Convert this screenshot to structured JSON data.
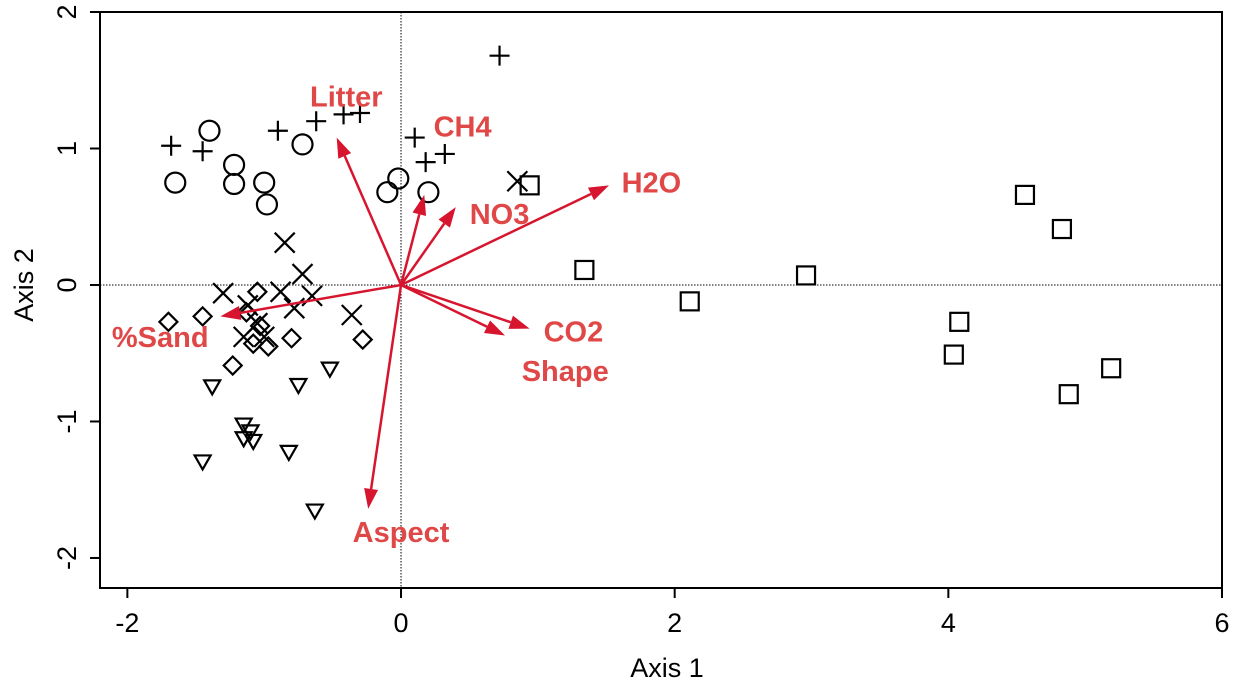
{
  "chart_data": {
    "type": "scatter",
    "title": "",
    "xlabel": "Axis 1",
    "ylabel": "Axis 2",
    "xlim": [
      -2.2,
      6
    ],
    "ylim": [
      -2.22,
      2
    ],
    "xticks": [
      -2,
      0,
      2,
      4,
      6
    ],
    "xtick_labels": [
      "-2",
      "0",
      "2",
      "4",
      "6"
    ],
    "yticks": [
      -2,
      -1,
      0,
      1,
      2
    ],
    "ytick_labels": [
      "-2",
      "-1",
      "0",
      "1",
      "2"
    ],
    "grid": false,
    "reference_lines": [
      {
        "axis": "x",
        "value": 0,
        "style": "dotted"
      },
      {
        "axis": "y",
        "value": 0,
        "style": "dotted"
      }
    ],
    "vector_color": "#d7152f",
    "label_color": "#e04848",
    "marker_color": "#000000",
    "series": [
      {
        "marker": "plus",
        "points": [
          [
            0.72,
            1.68
          ],
          [
            -1.68,
            1.02
          ],
          [
            -1.45,
            0.98
          ],
          [
            -0.9,
            1.13
          ],
          [
            -0.62,
            1.2
          ],
          [
            -0.42,
            1.25
          ],
          [
            -0.3,
            1.26
          ],
          [
            0.1,
            1.08
          ],
          [
            0.18,
            0.9
          ],
          [
            0.32,
            0.96
          ]
        ]
      },
      {
        "marker": "circle",
        "points": [
          [
            -1.4,
            1.13
          ],
          [
            -0.72,
            1.03
          ],
          [
            -1.22,
            0.88
          ],
          [
            -1.65,
            0.75
          ],
          [
            -1.22,
            0.74
          ],
          [
            -1.0,
            0.75
          ],
          [
            -0.98,
            0.59
          ],
          [
            -0.1,
            0.68
          ],
          [
            -0.02,
            0.78
          ],
          [
            0.2,
            0.68
          ]
        ]
      },
      {
        "marker": "x",
        "points": [
          [
            0.85,
            0.76
          ],
          [
            -0.85,
            0.31
          ],
          [
            -0.72,
            0.08
          ],
          [
            -1.3,
            -0.06
          ],
          [
            -0.88,
            -0.05
          ],
          [
            -0.65,
            -0.08
          ],
          [
            -1.12,
            -0.15
          ],
          [
            -0.78,
            -0.17
          ],
          [
            -0.36,
            -0.22
          ],
          [
            -1.05,
            -0.28
          ],
          [
            -1.15,
            -0.38
          ],
          [
            -1.0,
            -0.38
          ]
        ]
      },
      {
        "marker": "square",
        "points": [
          [
            0.94,
            0.73
          ],
          [
            4.56,
            0.66
          ],
          [
            4.83,
            0.41
          ],
          [
            1.34,
            0.11
          ],
          [
            2.96,
            0.07
          ],
          [
            2.11,
            -0.12
          ],
          [
            4.08,
            -0.27
          ],
          [
            4.04,
            -0.51
          ],
          [
            5.19,
            -0.61
          ],
          [
            4.88,
            -0.8
          ]
        ]
      },
      {
        "marker": "diamond",
        "points": [
          [
            -1.05,
            -0.05
          ],
          [
            -1.13,
            -0.2
          ],
          [
            -1.45,
            -0.23
          ],
          [
            -1.7,
            -0.27
          ],
          [
            -1.03,
            -0.3
          ],
          [
            -0.8,
            -0.39
          ],
          [
            -0.28,
            -0.4
          ],
          [
            -1.08,
            -0.43
          ],
          [
            -0.97,
            -0.45
          ],
          [
            -1.23,
            -0.59
          ]
        ]
      },
      {
        "marker": "triangle-down",
        "points": [
          [
            -0.52,
            -0.62
          ],
          [
            -0.75,
            -0.74
          ],
          [
            -1.38,
            -0.75
          ],
          [
            -1.15,
            -1.03
          ],
          [
            -1.1,
            -1.08
          ],
          [
            -1.15,
            -1.13
          ],
          [
            -1.08,
            -1.15
          ],
          [
            -0.82,
            -1.23
          ],
          [
            -1.45,
            -1.3
          ],
          [
            -0.63,
            -1.66
          ]
        ]
      }
    ],
    "vectors": [
      {
        "name": "Litter",
        "x": -0.47,
        "y": 1.08
      },
      {
        "name": "CH4",
        "x": 0.17,
        "y": 0.66
      },
      {
        "name": "NO3",
        "x": 0.4,
        "y": 0.57
      },
      {
        "name": "H2O",
        "x": 1.52,
        "y": 0.73
      },
      {
        "name": "%Sand",
        "x": -1.32,
        "y": -0.23
      },
      {
        "name": "CO2",
        "x": 0.94,
        "y": -0.32
      },
      {
        "name": "Shape",
        "x": 0.76,
        "y": -0.37
      },
      {
        "name": "Aspect",
        "x": -0.24,
        "y": -1.64
      }
    ],
    "vector_labels": [
      {
        "text": "Litter",
        "x": -0.4,
        "y": 1.38
      },
      {
        "text": "CH4",
        "x": 0.45,
        "y": 1.16
      },
      {
        "text": "H2O",
        "x": 1.83,
        "y": 0.75
      },
      {
        "text": "NO3",
        "x": 0.72,
        "y": 0.52
      },
      {
        "text": "%Sand",
        "x": -1.76,
        "y": -0.38
      },
      {
        "text": "CO2",
        "x": 1.26,
        "y": -0.34
      },
      {
        "text": "Shape",
        "x": 1.2,
        "y": -0.63
      },
      {
        "text": "Aspect",
        "x": 0.0,
        "y": -1.81
      }
    ]
  }
}
